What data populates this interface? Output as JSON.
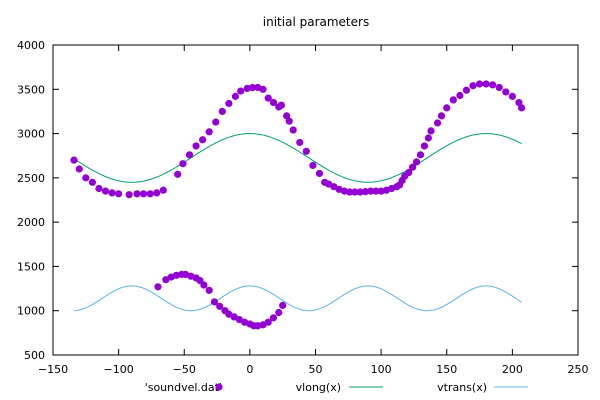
{
  "chart_data": {
    "type": "scatter",
    "title": "initial parameters",
    "xlim": [
      -150,
      250
    ],
    "ylim": [
      500,
      4000
    ],
    "xticks": [
      -150,
      -100,
      -50,
      0,
      50,
      100,
      150,
      200,
      250
    ],
    "yticks": [
      500,
      1000,
      1500,
      2000,
      2500,
      3000,
      3500,
      4000
    ],
    "grid": false,
    "legend_position": "bottom",
    "series": [
      {
        "name": "'soundvel.dat'",
        "kind": "points",
        "color": "#9400d3",
        "points": [
          [
            -134,
            2700
          ],
          [
            -130,
            2600
          ],
          [
            -125,
            2500
          ],
          [
            -120,
            2450
          ],
          [
            -115,
            2380
          ],
          [
            -110,
            2350
          ],
          [
            -105,
            2330
          ],
          [
            -100,
            2320
          ],
          [
            -92,
            2310
          ],
          [
            -86,
            2320
          ],
          [
            -81,
            2320
          ],
          [
            -76,
            2320
          ],
          [
            -71,
            2330
          ],
          [
            -66,
            2360
          ],
          [
            -55,
            2540
          ],
          [
            -51,
            2660
          ],
          [
            -46,
            2760
          ],
          [
            -41,
            2860
          ],
          [
            -36,
            2930
          ],
          [
            -31,
            3020
          ],
          [
            -26,
            3130
          ],
          [
            -21,
            3250
          ],
          [
            -16,
            3340
          ],
          [
            -11,
            3420
          ],
          [
            -7,
            3480
          ],
          [
            -2,
            3510
          ],
          [
            2,
            3520
          ],
          [
            6,
            3520
          ],
          [
            10,
            3500
          ],
          [
            14,
            3400
          ],
          [
            18,
            3350
          ],
          [
            22,
            3300
          ],
          [
            24,
            3320
          ],
          [
            28,
            3200
          ],
          [
            30,
            3140
          ],
          [
            33,
            3040
          ],
          [
            38,
            2900
          ],
          [
            43,
            2800
          ],
          [
            48,
            2640
          ],
          [
            53,
            2550
          ],
          [
            57,
            2450
          ],
          [
            60,
            2430
          ],
          [
            64,
            2400
          ],
          [
            68,
            2370
          ],
          [
            72,
            2350
          ],
          [
            76,
            2340
          ],
          [
            80,
            2340
          ],
          [
            84,
            2340
          ],
          [
            88,
            2345
          ],
          [
            92,
            2350
          ],
          [
            96,
            2350
          ],
          [
            100,
            2350
          ],
          [
            104,
            2360
          ],
          [
            108,
            2380
          ],
          [
            112,
            2400
          ],
          [
            114,
            2420
          ],
          [
            116,
            2470
          ],
          [
            118,
            2520
          ],
          [
            121,
            2560
          ],
          [
            124,
            2620
          ],
          [
            127,
            2680
          ],
          [
            130,
            2760
          ],
          [
            133,
            2860
          ],
          [
            136,
            2950
          ],
          [
            138,
            3030
          ],
          [
            143,
            3120
          ],
          [
            146,
            3200
          ],
          [
            150,
            3290
          ],
          [
            155,
            3380
          ],
          [
            160,
            3430
          ],
          [
            165,
            3490
          ],
          [
            170,
            3540
          ],
          [
            175,
            3560
          ],
          [
            180,
            3560
          ],
          [
            185,
            3550
          ],
          [
            190,
            3520
          ],
          [
            195,
            3470
          ],
          [
            200,
            3420
          ],
          [
            205,
            3350
          ],
          [
            207,
            3290
          ],
          [
            -70,
            1270
          ],
          [
            -64,
            1350
          ],
          [
            -60,
            1380
          ],
          [
            -56,
            1400
          ],
          [
            -52,
            1410
          ],
          [
            -49,
            1410
          ],
          [
            -45,
            1390
          ],
          [
            -41,
            1370
          ],
          [
            -38,
            1340
          ],
          [
            -35,
            1290
          ],
          [
            -31,
            1230
          ],
          [
            -27,
            1100
          ],
          [
            -23,
            1050
          ],
          [
            -19,
            1000
          ],
          [
            -16,
            960
          ],
          [
            -12,
            930
          ],
          [
            -8,
            900
          ],
          [
            -4,
            870
          ],
          [
            0,
            850
          ],
          [
            3,
            830
          ],
          [
            6,
            830
          ],
          [
            10,
            840
          ],
          [
            14,
            870
          ],
          [
            18,
            920
          ],
          [
            22,
            980
          ],
          [
            25,
            1060
          ]
        ]
      },
      {
        "name": "vlong(x)",
        "kind": "line",
        "color": "#009e73",
        "func": "vlong",
        "params": {
          "center": 2725,
          "amplitude": 275,
          "period": 180,
          "phase": 0,
          "xmin": -134,
          "xmax": 207
        }
      },
      {
        "name": "vtrans(x)",
        "kind": "line",
        "color": "#56b4e9",
        "func": "vtrans",
        "params": {
          "center": 1140,
          "amplitude": 140,
          "period": 90,
          "phase": 0,
          "xmin": -134,
          "xmax": 207
        }
      }
    ]
  }
}
